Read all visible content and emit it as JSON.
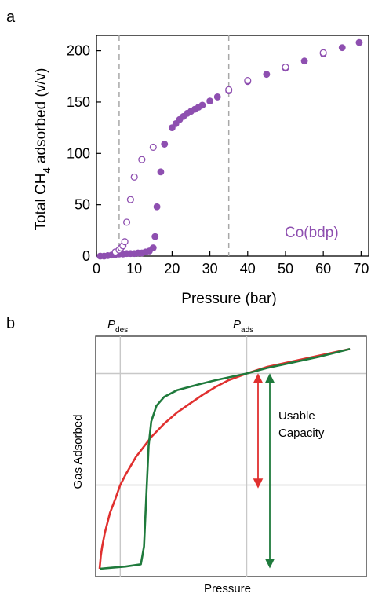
{
  "colors": {
    "purple": "#8e4fb0",
    "red": "#e0302f",
    "green": "#1f7a3c",
    "dashed": "#a8a8a8",
    "grid": "#c8c8c8",
    "axis": "#000000"
  },
  "chart_data": [
    {
      "panel": "a",
      "type": "scatter",
      "xlabel": "Pressure (bar)",
      "ylabel_main": "Total CH",
      "ylabel_sub": "4",
      "ylabel_rest": " adsorbed (v/v)",
      "xlim": [
        0,
        72
      ],
      "ylim": [
        0,
        215
      ],
      "xticks": [
        0,
        10,
        20,
        30,
        40,
        50,
        60,
        70
      ],
      "yticks": [
        0,
        50,
        100,
        150,
        200
      ],
      "vlines": [
        6,
        35
      ],
      "annotation": "Co(bdp)",
      "series": [
        {
          "marker": "filled",
          "points": [
            [
              1,
              0
            ],
            [
              2,
              0
            ],
            [
              3,
              0.5
            ],
            [
              4,
              1
            ],
            [
              5,
              1.5
            ],
            [
              6,
              2
            ],
            [
              7,
              2
            ],
            [
              8,
              2.5
            ],
            [
              9,
              2.5
            ],
            [
              10,
              2.5
            ],
            [
              11,
              3
            ],
            [
              12,
              3
            ],
            [
              13,
              4
            ],
            [
              14,
              5
            ],
            [
              15,
              8
            ],
            [
              15.5,
              19
            ],
            [
              16,
              48
            ],
            [
              17,
              82
            ],
            [
              18,
              109
            ],
            [
              20,
              125
            ],
            [
              21,
              129
            ],
            [
              22,
              133
            ],
            [
              23,
              136
            ],
            [
              24,
              139
            ],
            [
              25,
              141
            ],
            [
              26,
              143
            ],
            [
              27,
              145
            ],
            [
              28,
              147
            ],
            [
              30,
              151
            ],
            [
              32,
              155
            ],
            [
              35,
              161
            ],
            [
              40,
              170
            ],
            [
              45,
              177
            ],
            [
              50,
              183
            ],
            [
              55,
              190
            ],
            [
              60,
              197
            ],
            [
              65,
              203
            ],
            [
              69.5,
              208
            ]
          ]
        },
        {
          "marker": "open",
          "points": [
            [
              5,
              4
            ],
            [
              6,
              6
            ],
            [
              6.5,
              8
            ],
            [
              7,
              10
            ],
            [
              7.5,
              14
            ],
            [
              8,
              33
            ],
            [
              9,
              55
            ],
            [
              10,
              77
            ],
            [
              12,
              94
            ],
            [
              15,
              106
            ],
            [
              35,
              162
            ],
            [
              40,
              171
            ],
            [
              50,
              184
            ],
            [
              60,
              198
            ]
          ]
        }
      ]
    },
    {
      "panel": "b",
      "type": "line",
      "xlabel": "Pressure",
      "ylabel": "Gas Adsorbed",
      "pdes_letter": "P",
      "pdes_sub": "des",
      "pads_letter": "P",
      "pads_sub": "ads",
      "annotation_line1": "Usable",
      "annotation_line2": "Capacity",
      "xlim": [
        0,
        1
      ],
      "ylim": [
        0,
        1
      ],
      "pdes": 0.08,
      "pads": 0.57,
      "gridlines_y": [
        0.375,
        0.875
      ],
      "series": [
        {
          "name": "red",
          "points": [
            [
              0.0,
              0.0
            ],
            [
              0.005,
              0.06
            ],
            [
              0.01,
              0.1
            ],
            [
              0.02,
              0.16
            ],
            [
              0.04,
              0.25
            ],
            [
              0.06,
              0.31
            ],
            [
              0.08,
              0.375
            ],
            [
              0.1,
              0.42
            ],
            [
              0.14,
              0.5
            ],
            [
              0.2,
              0.59
            ],
            [
              0.25,
              0.65
            ],
            [
              0.3,
              0.7
            ],
            [
              0.35,
              0.74
            ],
            [
              0.4,
              0.78
            ],
            [
              0.45,
              0.815
            ],
            [
              0.5,
              0.845
            ],
            [
              0.57,
              0.875
            ],
            [
              0.65,
              0.905
            ],
            [
              0.75,
              0.93
            ],
            [
              0.85,
              0.955
            ],
            [
              0.97,
              0.985
            ]
          ]
        },
        {
          "name": "green",
          "points": [
            [
              0.0,
              0.0
            ],
            [
              0.05,
              0.005
            ],
            [
              0.1,
              0.01
            ],
            [
              0.16,
              0.02
            ],
            [
              0.172,
              0.1
            ],
            [
              0.18,
              0.3
            ],
            [
              0.19,
              0.55
            ],
            [
              0.2,
              0.66
            ],
            [
              0.22,
              0.73
            ],
            [
              0.25,
              0.77
            ],
            [
              0.3,
              0.8
            ],
            [
              0.38,
              0.825
            ],
            [
              0.45,
              0.845
            ],
            [
              0.57,
              0.875
            ],
            [
              0.65,
              0.9
            ],
            [
              0.75,
              0.925
            ],
            [
              0.85,
              0.95
            ],
            [
              0.97,
              0.985
            ]
          ]
        }
      ],
      "red_arrow": [
        0.875,
        0.375
      ],
      "green_arrow": [
        0.875,
        0.01
      ]
    }
  ],
  "labels": {
    "panel_a": "a",
    "panel_b": "b"
  }
}
